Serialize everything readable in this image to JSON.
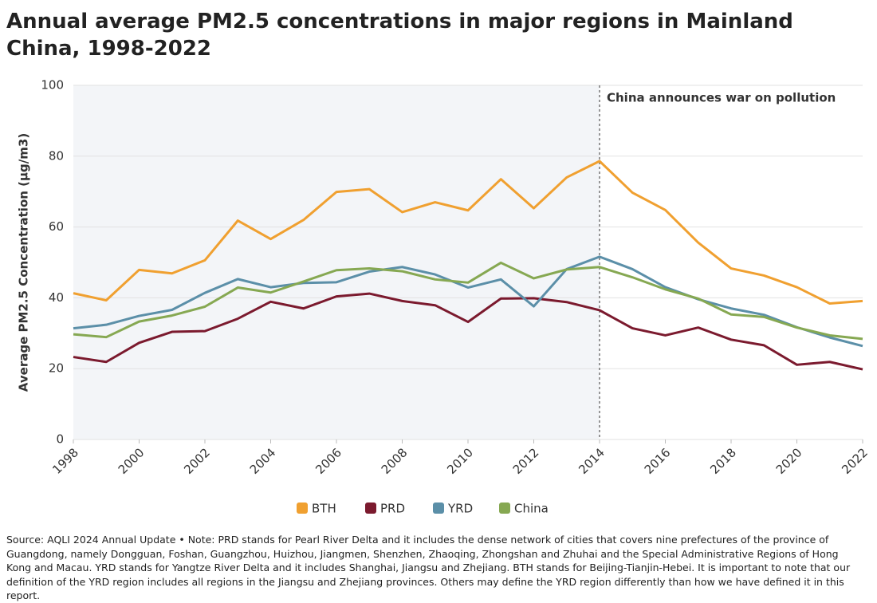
{
  "chart_data": {
    "type": "line",
    "title": "Annual average PM2.5 concentrations in major regions in Mainland China, 1998-2022",
    "y_label": "Average PM2.5 Concentration (µg/m3)",
    "annotation": {
      "label": "China announces war on pollution",
      "x": 2014
    },
    "x": [
      1998,
      1999,
      2000,
      2001,
      2002,
      2003,
      2004,
      2005,
      2006,
      2007,
      2008,
      2009,
      2010,
      2011,
      2012,
      2013,
      2014,
      2015,
      2016,
      2017,
      2018,
      2019,
      2020,
      2021,
      2022
    ],
    "series": [
      {
        "name": "BTH",
        "color": "#f0a030",
        "values": [
          41.3,
          39.3,
          47.9,
          46.9,
          50.6,
          61.8,
          56.6,
          62.0,
          69.9,
          70.7,
          64.2,
          67.0,
          64.7,
          73.5,
          65.3,
          74.0,
          78.6,
          69.7,
          64.8,
          55.6,
          48.3,
          46.3,
          43.0,
          38.4,
          39.1
        ]
      },
      {
        "name": "PRD",
        "color": "#7b1a2e",
        "values": [
          23.3,
          21.9,
          27.3,
          30.4,
          30.6,
          34.1,
          38.9,
          37.0,
          40.4,
          41.2,
          39.1,
          37.9,
          33.2,
          39.8,
          39.9,
          38.8,
          36.5,
          31.4,
          29.4,
          31.6,
          28.2,
          26.6,
          21.1,
          21.9,
          19.8
        ]
      },
      {
        "name": "YRD",
        "color": "#5b8fa8",
        "values": [
          31.4,
          32.4,
          34.9,
          36.6,
          41.4,
          45.3,
          43.0,
          44.2,
          44.4,
          47.4,
          48.7,
          46.6,
          42.9,
          45.2,
          37.6,
          48.1,
          51.6,
          48.1,
          43.0,
          39.6,
          37.0,
          35.2,
          31.7,
          28.8,
          26.4
        ]
      },
      {
        "name": "China",
        "color": "#86a852",
        "values": [
          29.7,
          28.9,
          33.3,
          35.0,
          37.5,
          42.9,
          41.5,
          44.6,
          47.8,
          48.3,
          47.5,
          45.2,
          44.3,
          49.9,
          45.5,
          48.0,
          48.7,
          45.8,
          42.4,
          39.8,
          35.3,
          34.6,
          31.6,
          29.4,
          28.4
        ]
      }
    ],
    "xlim": [
      1998,
      2022
    ],
    "xticks": [
      1998,
      2000,
      2002,
      2004,
      2006,
      2008,
      2010,
      2012,
      2014,
      2016,
      2018,
      2020,
      2022
    ],
    "ylim": [
      0,
      100
    ],
    "yticks": [
      0,
      20,
      40,
      60,
      80,
      100
    ],
    "grid": true,
    "note": "Source: AQLI 2024 Annual Update • Note: PRD stands for Pearl River Delta and it includes the dense network of cities that covers nine prefectures of the province of Guangdong, namely Dongguan, Foshan, Guangzhou, Huizhou, Jiangmen, Shenzhen, Zhaoqing, Zhongshan and Zhuhai and the Special Administrative Regions of Hong Kong and Macau. YRD stands for Yangtze River Delta and it includes Shanghai, Jiangsu and Zhejiang. BTH stands for Beijing-Tianjin-Hebei. It is important to note that our definition of the YRD region includes all regions in the Jiangsu and Zhejiang provinces. Others may define the YRD region differently than how we have defined it in this report."
  }
}
